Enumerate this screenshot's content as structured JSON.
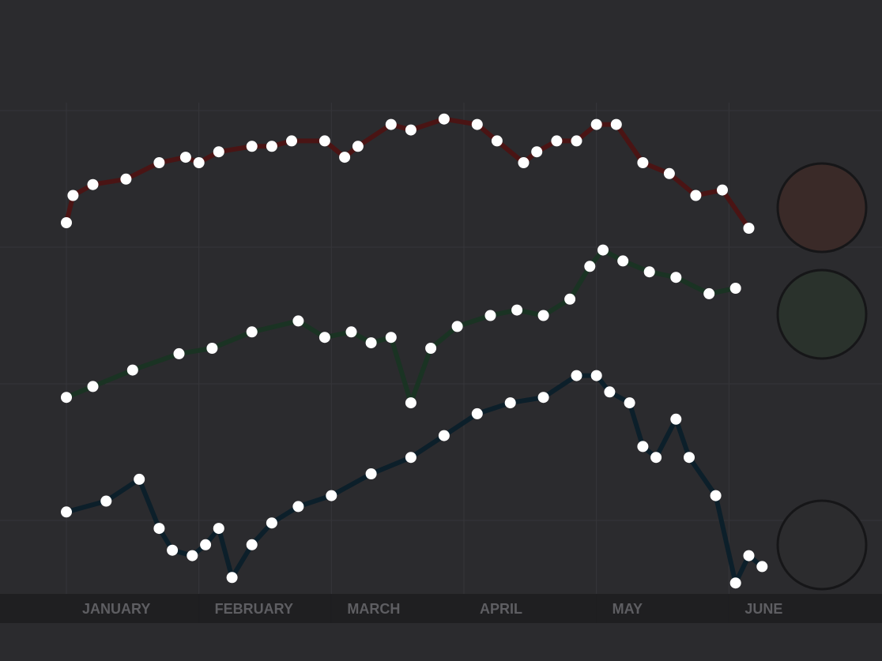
{
  "chart_data": {
    "type": "line",
    "title": "",
    "xlabel": "",
    "ylabel": "",
    "x_range": [
      0,
      6
    ],
    "ylim": [
      0,
      100
    ],
    "grid": true,
    "legend": "none",
    "x_ticks": [
      {
        "x": 0,
        "label": "JANUARY"
      },
      {
        "x": 1,
        "label": "FEBRUARY"
      },
      {
        "x": 2,
        "label": "MARCH"
      },
      {
        "x": 3,
        "label": "APRIL"
      },
      {
        "x": 4,
        "label": "MAY"
      },
      {
        "x": 5,
        "label": "JUNE"
      }
    ],
    "series": [
      {
        "color": "#4a1414",
        "end_badge_color": "#3a2a28",
        "x": [
          0,
          0.05,
          0.2,
          0.45,
          0.7,
          0.9,
          1.0,
          1.15,
          1.4,
          1.55,
          1.7,
          1.95,
          2.1,
          2.2,
          2.45,
          2.6,
          2.85,
          3.1,
          3.25,
          3.45,
          3.55,
          3.7,
          3.85,
          4.0,
          4.15,
          4.35,
          4.55,
          4.75,
          4.95,
          5.15
        ],
        "y": [
          83,
          88,
          90,
          91,
          94,
          95,
          94,
          96,
          97,
          97,
          98,
          98,
          95,
          97,
          101,
          100,
          102,
          101,
          98,
          94,
          96,
          98,
          98,
          101,
          101,
          94,
          92,
          88,
          89,
          82
        ]
      },
      {
        "color": "#1a3323",
        "end_badge_color": "#2a322c",
        "x": [
          0,
          0.2,
          0.5,
          0.85,
          1.1,
          1.4,
          1.75,
          1.95,
          2.15,
          2.3,
          2.45,
          2.6,
          2.75,
          2.95,
          3.2,
          3.4,
          3.6,
          3.8,
          3.95,
          4.05,
          4.2,
          4.4,
          4.6,
          4.85,
          5.05
        ],
        "y": [
          51,
          53,
          56,
          59,
          60,
          63,
          65,
          62,
          63,
          61,
          62,
          50,
          60,
          64,
          66,
          67,
          66,
          69,
          75,
          78,
          76,
          74,
          73,
          70,
          71
        ]
      },
      {
        "color": "#0c1f2a",
        "end_badge_color": "#2c2c2e",
        "x": [
          0,
          0.3,
          0.55,
          0.7,
          0.8,
          0.95,
          1.05,
          1.15,
          1.25,
          1.4,
          1.55,
          1.75,
          2.0,
          2.3,
          2.6,
          2.85,
          3.1,
          3.35,
          3.6,
          3.85,
          4.0,
          4.1,
          4.25,
          4.35,
          4.45,
          4.6,
          4.7,
          4.9,
          5.05,
          5.15,
          5.25
        ],
        "y": [
          30,
          32,
          36,
          27,
          23,
          22,
          24,
          27,
          18,
          24,
          28,
          31,
          33,
          37,
          40,
          44,
          48,
          50,
          51,
          55,
          55,
          52,
          50,
          42,
          40,
          47,
          40,
          33,
          17,
          22,
          20
        ]
      }
    ]
  }
}
